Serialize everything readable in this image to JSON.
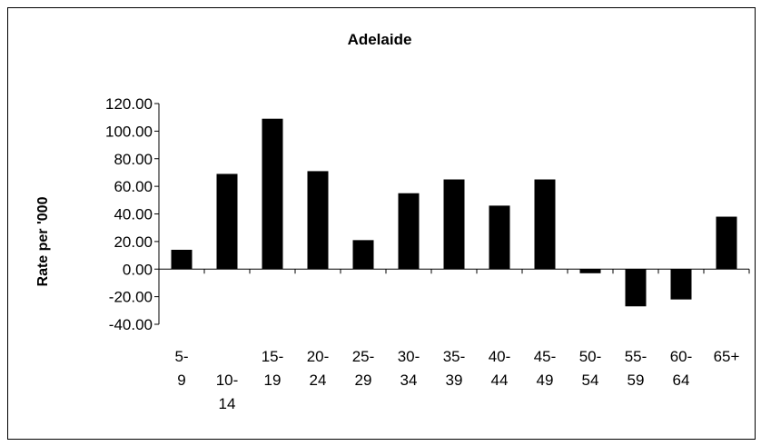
{
  "chart_data": {
    "type": "bar",
    "title": "Adelaide",
    "xlabel": "",
    "ylabel": "Rate per '000",
    "ylim": [
      -40,
      120
    ],
    "yticks": [
      120,
      100,
      80,
      60,
      40,
      20,
      0,
      -20,
      -40
    ],
    "ytick_labels": [
      "120.00",
      "100.00",
      "80.00",
      "60.00",
      "40.00",
      "20.00",
      "0.00",
      "-20.00",
      "-40.00"
    ],
    "categories": [
      "5-9",
      "10-14",
      "15-19",
      "20-24",
      "25-29",
      "30-34",
      "35-39",
      "40-44",
      "45-49",
      "50-54",
      "55-59",
      "60-64",
      "65+"
    ],
    "category_label_lines": [
      [
        "5-",
        "9"
      ],
      [
        "",
        "10-",
        "14"
      ],
      [
        "15-",
        "19"
      ],
      [
        "20-",
        "24"
      ],
      [
        "25-",
        "29"
      ],
      [
        "30-",
        "34"
      ],
      [
        "35-",
        "39"
      ],
      [
        "40-",
        "44"
      ],
      [
        "45-",
        "49"
      ],
      [
        "50-",
        "54"
      ],
      [
        "55-",
        "59"
      ],
      [
        "60-",
        "64"
      ],
      [
        "65+"
      ]
    ],
    "values": [
      14,
      69,
      109,
      71,
      21,
      55,
      65,
      46,
      65,
      -3,
      -27,
      -22,
      38
    ],
    "bar_color": "#000000",
    "grid": false,
    "legend": "none"
  }
}
